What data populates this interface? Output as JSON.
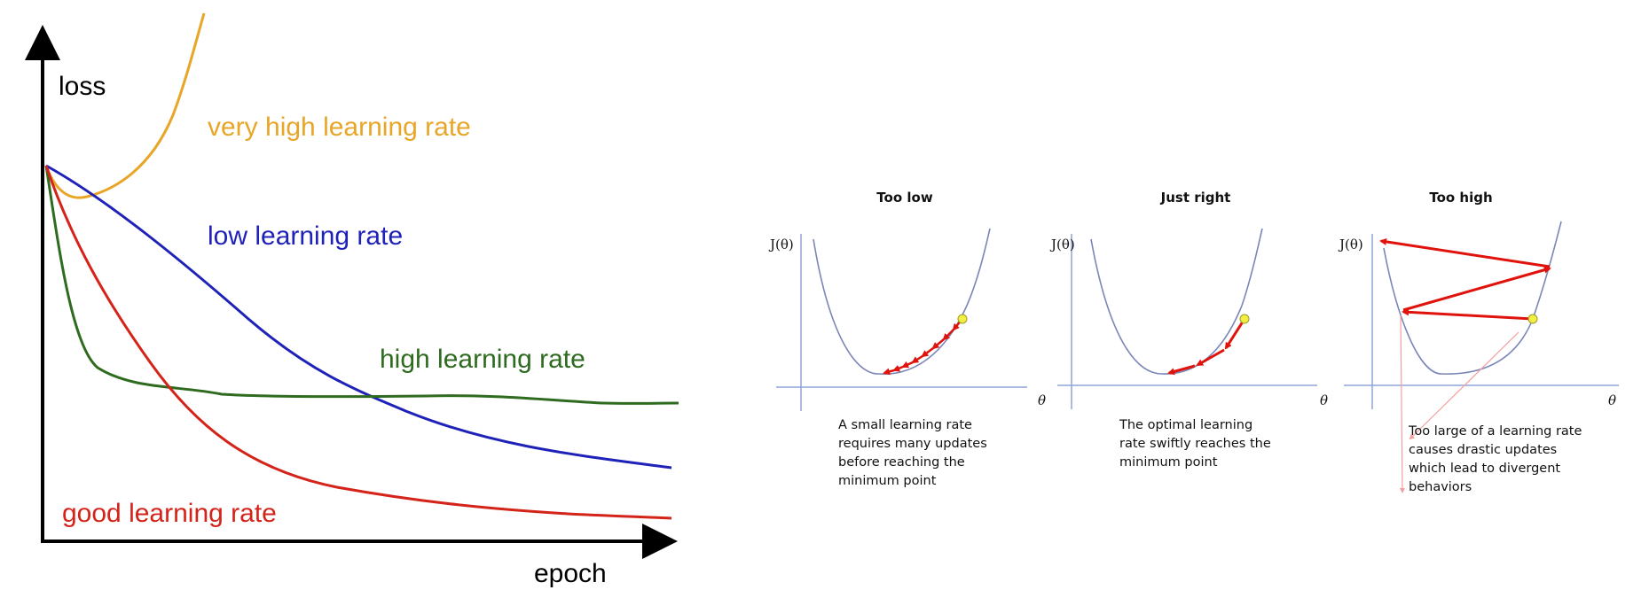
{
  "left_chart": {
    "y_label": "loss",
    "x_label": "epoch",
    "colors": {
      "very_high": "#e8a628",
      "low": "#1f22b8",
      "high": "#2e6b1f",
      "good": "#d4241a"
    },
    "curve_labels": {
      "very_high": "very high learning rate",
      "low": "low learning rate",
      "high": "high learning rate",
      "good": "good learning rate"
    }
  },
  "panels": [
    {
      "title": "Too low",
      "y_label": "J(θ)",
      "x_label": "θ",
      "caption": [
        "A small learning rate",
        "requires many updates",
        "before reaching the",
        "minimum point"
      ]
    },
    {
      "title": "Just right",
      "y_label": "J(θ)",
      "x_label": "θ",
      "caption": [
        "The optimal learning",
        "rate swiftly reaches the",
        "minimum point"
      ]
    },
    {
      "title": "Too high",
      "y_label": "J(θ)",
      "x_label": "θ",
      "caption": [
        "Too large of a learning rate",
        "causes drastic updates",
        "which lead to divergent",
        "behaviors"
      ]
    }
  ]
}
